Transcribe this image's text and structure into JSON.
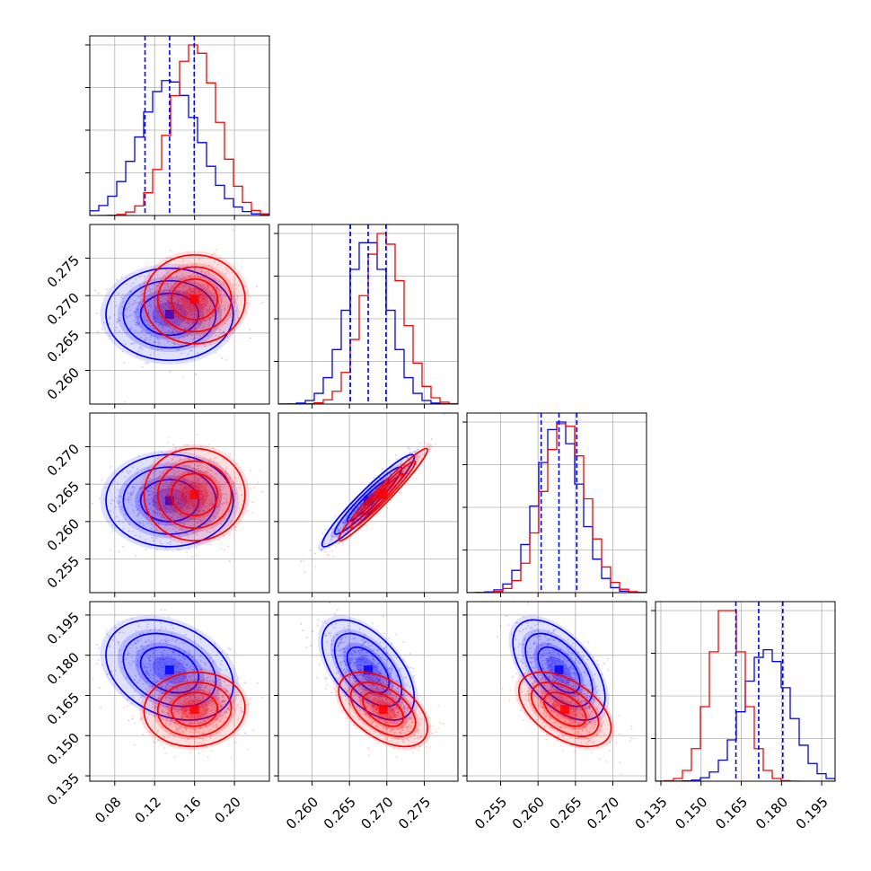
{
  "colors": {
    "series_a": "#0000ff",
    "series_b": "#ff0000",
    "grid": "#b0b0b0",
    "frame": "#000000"
  },
  "chart_data": {
    "type": "corner",
    "grid": true,
    "legend": "none",
    "n_params": 4,
    "series": [
      {
        "color_key": "series_a",
        "means": [
          0.135,
          0.2675,
          0.2628,
          0.1745
        ],
        "sds": [
          0.029,
          0.0028,
          0.0028,
          0.0085
        ],
        "corr": [
          [
            1,
            0,
            0,
            -0.3
          ],
          [
            0,
            1,
            0.95,
            -0.55
          ],
          [
            0,
            0.95,
            1,
            -0.55
          ],
          [
            -0.3,
            -0.55,
            -0.55,
            1
          ]
        ],
        "quantile_lines": [
          0.112,
          0.137,
          0.166
        ]
      },
      {
        "color_key": "series_b",
        "means": [
          0.16,
          0.2695,
          0.2636,
          0.1598
        ],
        "sds": [
          0.023,
          0.0027,
          0.0028,
          0.0063
        ],
        "corr": [
          [
            1,
            0,
            0,
            0.05
          ],
          [
            0,
            1,
            0.97,
            -0.5
          ],
          [
            0,
            0.97,
            1,
            -0.5
          ],
          [
            0.05,
            -0.5,
            -0.5,
            1
          ]
        ],
        "quantile_lines": [
          0.163,
          0.1715,
          0.1805
        ]
      }
    ],
    "params": [
      {
        "range": [
          0.055,
          0.235
        ],
        "ticks": [
          0.08,
          0.12,
          0.16,
          0.2
        ],
        "tick_labels": [
          "0.08",
          "0.12",
          "0.16",
          "0.20"
        ]
      },
      {
        "range": [
          0.2555,
          0.2795
        ],
        "ticks": [
          0.26,
          0.265,
          0.27,
          0.275
        ],
        "tick_labels": [
          "0.260",
          "0.265",
          "0.270",
          "0.275"
        ]
      },
      {
        "range": [
          0.2505,
          0.2745
        ],
        "ticks": [
          0.255,
          0.26,
          0.265,
          0.27
        ],
        "tick_labels": [
          "0.255",
          "0.260",
          "0.265",
          "0.270"
        ]
      },
      {
        "range": [
          0.133,
          0.2
        ],
        "ticks": [
          0.135,
          0.15,
          0.165,
          0.18,
          0.195
        ],
        "tick_labels": [
          "0.135",
          "0.150",
          "0.165",
          "0.180",
          "0.195"
        ]
      }
    ]
  }
}
